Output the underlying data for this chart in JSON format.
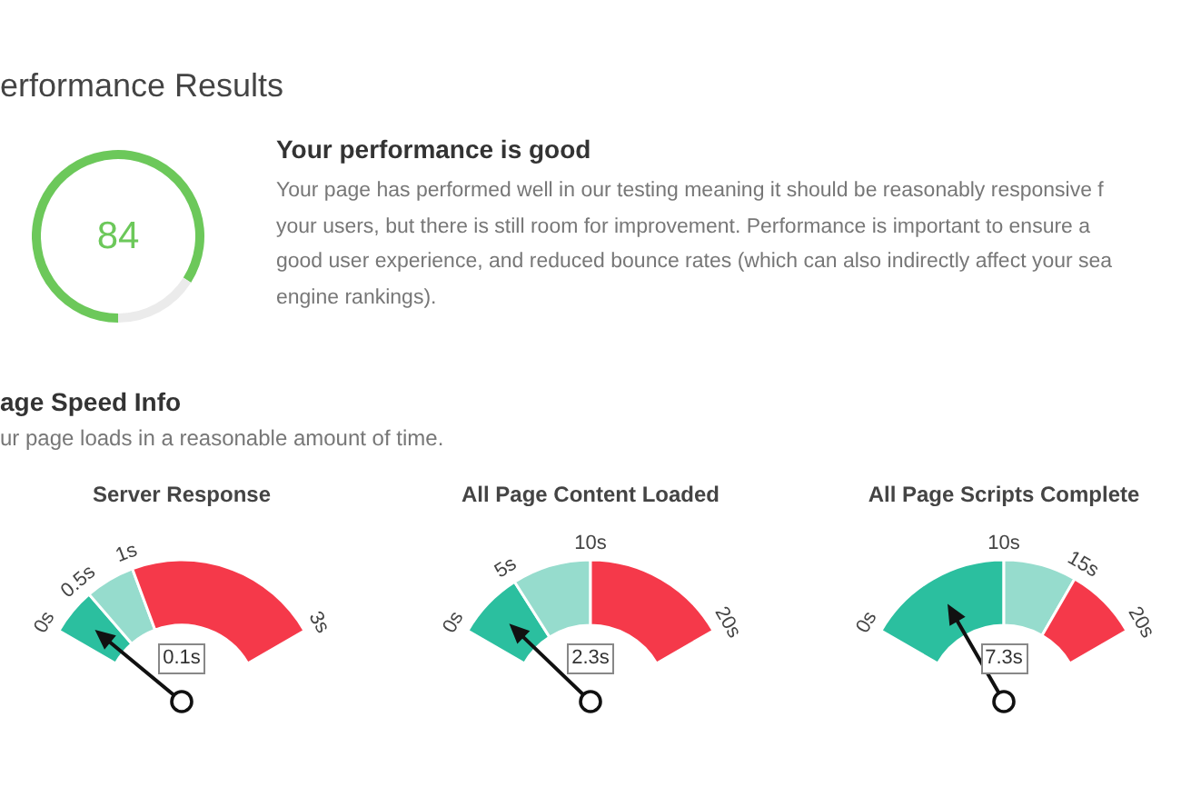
{
  "chart_data": [
    {
      "type": "donut",
      "title": "erformance Results",
      "categories": [
        null,
        null
      ],
      "values": [
        84,
        16
      ],
      "colors": [
        "#6cc85a",
        "#ebebeb"
      ],
      "value_labels": [
        "84",
        null
      ]
    },
    {
      "type": "other",
      "title": "Your performance is good",
      "annotations": [
        "Your page has performed well in our testing meaning it should be reasonably responsive f",
        "your users, but there is still room for improvement. Performance is important to ensure a",
        "good user experience, and reduced bounce rates (which can also indirectly affect your sea",
        "engine rankings)."
      ]
    },
    {
      "type": "other",
      "title": "age Speed Info",
      "subtitle": "ur page loads in a reasonable amount of time."
    },
    {
      "type": "donut",
      "title": "Server Response",
      "categories": [
        "0.5s",
        "1s",
        "3s"
      ],
      "values": [
        16,
        17,
        67
      ],
      "colors": [
        "#2bbf9f",
        "#96dccd",
        "#f5394a"
      ],
      "annotations": [
        "0s",
        "0.1s"
      ],
      "needle": "0.5s"
    },
    {
      "type": "donut",
      "title": "All Page Content Loaded",
      "categories": [
        "5s",
        "10s",
        "20s"
      ],
      "values": [
        23,
        27,
        50
      ],
      "colors": [
        "#2bbf9f",
        "#96dccd",
        "#f5394a"
      ],
      "annotations": [
        "0s",
        "2.3s"
      ],
      "needle": "5s"
    },
    {
      "type": "donut",
      "title": "All Page Scripts Complete",
      "categories": [
        "10s",
        "15s",
        "20s"
      ],
      "values": [
        50,
        25,
        25
      ],
      "colors": [
        "#2bbf9f",
        "#96dccd",
        "#f5394a"
      ],
      "annotations": [
        "0s",
        "7.3s"
      ],
      "needle": "10s"
    }
  ]
}
